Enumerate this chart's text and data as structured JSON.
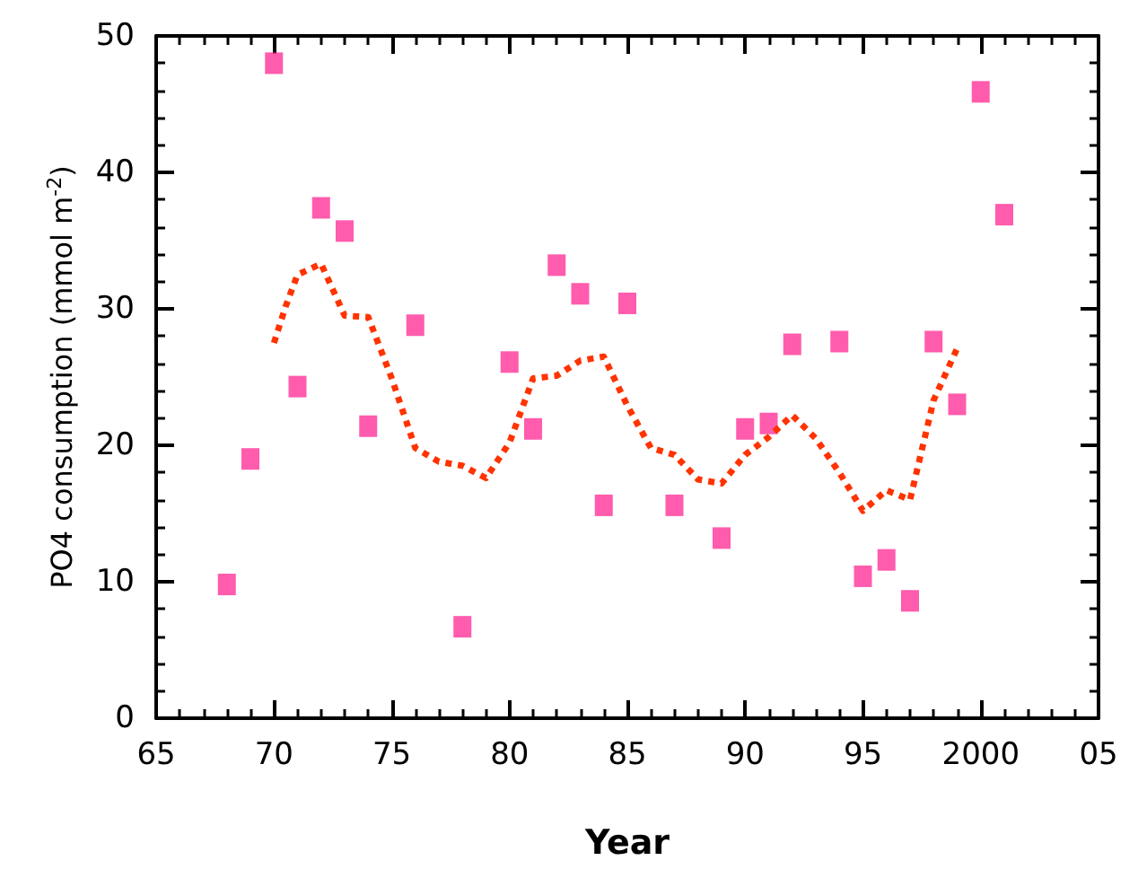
{
  "chart_data": {
    "type": "scatter",
    "xlabel": "Year",
    "ylabel": "PO4 consumption (mmol m$^{-2}$)",
    "xlim": [
      1965,
      2005
    ],
    "xticks": [
      {
        "value": 1965,
        "label": "65"
      },
      {
        "value": 1970,
        "label": "70"
      },
      {
        "value": 1975,
        "label": "75"
      },
      {
        "value": 1980,
        "label": "80"
      },
      {
        "value": 1985,
        "label": "85"
      },
      {
        "value": 1990,
        "label": "90"
      },
      {
        "value": 1995,
        "label": "95"
      },
      {
        "value": 2000,
        "label": "2000"
      },
      {
        "value": 2005,
        "label": "05"
      }
    ],
    "ylim": [
      0,
      50
    ],
    "yticks": [
      0,
      10,
      20,
      30,
      40,
      50
    ],
    "grid": false,
    "series": [
      {
        "color": "#ff3399",
        "marker": "square",
        "x": [
          1968,
          1969,
          1970,
          1971,
          1972,
          1973,
          1974,
          1976,
          1978,
          1980,
          1981,
          1982,
          1983,
          1984,
          1985,
          1987,
          1989,
          1990,
          1991,
          1992,
          1994,
          1995,
          1996,
          1997,
          1998,
          1999,
          2000,
          2001
        ],
        "values": [
          9.8,
          19.0,
          48.0,
          24.3,
          37.4,
          35.7,
          21.4,
          28.8,
          6.7,
          26.1,
          21.2,
          33.2,
          31.1,
          15.6,
          30.4,
          15.6,
          13.2,
          21.2,
          21.6,
          27.4,
          27.6,
          10.4,
          11.6,
          8.6,
          27.6,
          23.0,
          45.9,
          36.9
        ]
      },
      {
        "type": "line",
        "color": "#ff3300",
        "marker": "none",
        "line_style": "dotted",
        "x": [
          1970,
          1970.5,
          1971,
          1972,
          1973,
          1974,
          1975,
          1976,
          1977,
          1978,
          1979,
          1980,
          1981,
          1982,
          1983,
          1984,
          1985,
          1986,
          1987,
          1988,
          1989,
          1990,
          1991,
          1992,
          1993,
          1994,
          1995,
          1996,
          1997,
          1998,
          1999
        ],
        "values": [
          27.5,
          30.2,
          32.5,
          33.3,
          29.5,
          29.4,
          24.9,
          19.8,
          18.8,
          18.5,
          17.6,
          20.2,
          24.9,
          25.1,
          26.2,
          26.5,
          22.9,
          19.8,
          19.3,
          17.5,
          17.2,
          19.3,
          20.6,
          22.2,
          20.5,
          18.0,
          15.2,
          16.7,
          16.0,
          23.3,
          27.1
        ]
      }
    ]
  }
}
